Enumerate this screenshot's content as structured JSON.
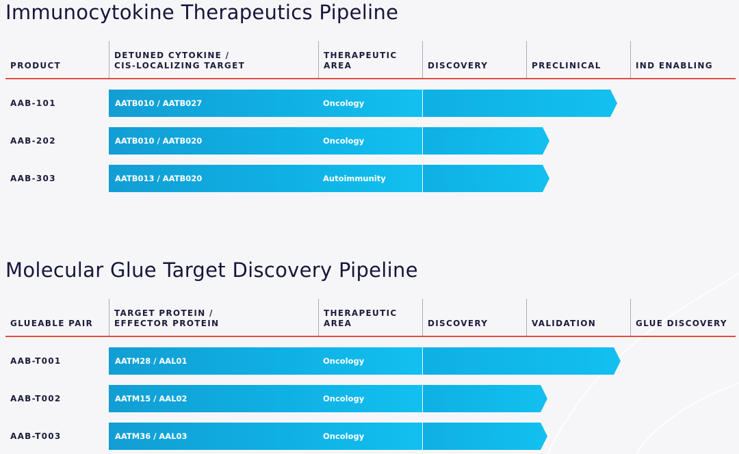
{
  "sections": [
    {
      "title": "Immunocytokine Therapeutics Pipeline",
      "headers": [
        "PRODUCT",
        "DETUNED CYTOKINE /\nCIS-LOCALIZING TARGET",
        "THERAPEUTIC\nAREA",
        "DISCOVERY",
        "PRECLINICAL",
        "IND ENABLING"
      ],
      "rows": [
        {
          "product": "AAB-101",
          "target": "AATB010 / AATB027",
          "area": "Oncology",
          "progress_stages": 1.87
        },
        {
          "product": "AAB-202",
          "target": "AATB010 / AATB020",
          "area": "Oncology",
          "progress_stages": 1.22
        },
        {
          "product": "AAB-303",
          "target": "AATB013 / AATB020",
          "area": "Autoimmunity",
          "progress_stages": 1.22
        }
      ]
    },
    {
      "title": "Molecular Glue Target Discovery Pipeline",
      "headers": [
        "GLUEABLE PAIR",
        "TARGET PROTEIN /\nEFFECTOR PROTEIN",
        "THERAPEUTIC\nAREA",
        "DISCOVERY",
        "VALIDATION",
        "GLUE DISCOVERY"
      ],
      "rows": [
        {
          "product": "AAB-T001",
          "target": "AATM28 / AAL01",
          "area": "Oncology",
          "progress_stages": 1.9
        },
        {
          "product": "AAB-T002",
          "target": "AATM15 / AAL02",
          "area": "Oncology",
          "progress_stages": 1.2
        },
        {
          "product": "AAB-T003",
          "target": "AATM36 / AAL03",
          "area": "Oncology",
          "progress_stages": 1.2
        }
      ]
    }
  ],
  "colors": {
    "bar": "#0fb0e4",
    "bar_dark": "#129ed3",
    "bar_light": "#12c0f0",
    "rule": "#e04a3e",
    "text": "#1b1b3a"
  }
}
